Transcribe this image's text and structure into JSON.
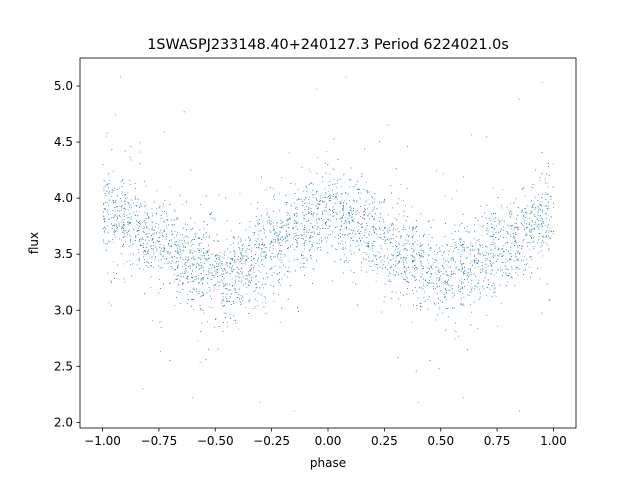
{
  "chart_data": {
    "type": "scatter",
    "title": "1SWASPJ233148.40+240127.3 Period 6224021.0s",
    "xlabel": "phase",
    "ylabel": "flux",
    "xlim": [
      -1.1,
      1.1
    ],
    "ylim": [
      1.95,
      5.25
    ],
    "xticks": [
      -1.0,
      -0.75,
      -0.5,
      -0.25,
      0.0,
      0.25,
      0.5,
      0.75,
      1.0
    ],
    "xtick_labels": [
      "−1.00",
      "−0.75",
      "−0.50",
      "−0.25",
      "0.00",
      "0.25",
      "0.50",
      "0.75",
      "1.00"
    ],
    "yticks": [
      2.0,
      2.5,
      3.0,
      3.5,
      4.0,
      4.5,
      5.0
    ],
    "ytick_labels": [
      "2.0",
      "2.5",
      "3.0",
      "3.5",
      "4.0",
      "4.5",
      "5.0"
    ],
    "grid": false,
    "point_color": "#1f77b4",
    "series": [
      {
        "curve": [
          {
            "x": -1.0,
            "y": 3.9
          },
          {
            "x": -0.9,
            "y": 3.78
          },
          {
            "x": -0.8,
            "y": 3.65
          },
          {
            "x": -0.7,
            "y": 3.55
          },
          {
            "x": -0.6,
            "y": 3.42
          },
          {
            "x": -0.5,
            "y": 3.32
          },
          {
            "x": -0.45,
            "y": 3.3
          },
          {
            "x": -0.4,
            "y": 3.36
          },
          {
            "x": -0.3,
            "y": 3.48
          },
          {
            "x": -0.2,
            "y": 3.62
          },
          {
            "x": -0.1,
            "y": 3.75
          },
          {
            "x": 0.0,
            "y": 3.9
          },
          {
            "x": 0.1,
            "y": 3.78
          },
          {
            "x": 0.2,
            "y": 3.65
          },
          {
            "x": 0.3,
            "y": 3.55
          },
          {
            "x": 0.4,
            "y": 3.42
          },
          {
            "x": 0.5,
            "y": 3.32
          },
          {
            "x": 0.55,
            "y": 3.3
          },
          {
            "x": 0.6,
            "y": 3.36
          },
          {
            "x": 0.7,
            "y": 3.48
          },
          {
            "x": 0.8,
            "y": 3.62
          },
          {
            "x": 0.9,
            "y": 3.75
          },
          {
            "x": 1.0,
            "y": 3.9
          }
        ],
        "scatter_sigma": 0.2,
        "n_points": 5000,
        "y_range": [
          2.1,
          5.1
        ],
        "outliers": [
          {
            "x": -0.92,
            "y": 5.08
          },
          {
            "x": 0.08,
            "y": 5.08
          },
          {
            "x": 0.95,
            "y": 5.03
          },
          {
            "x": -0.05,
            "y": 4.97
          },
          {
            "x": 0.85,
            "y": 4.88
          },
          {
            "x": -0.6,
            "y": 2.22
          },
          {
            "x": -0.3,
            "y": 2.18
          },
          {
            "x": 0.4,
            "y": 2.18
          },
          {
            "x": 0.6,
            "y": 2.22
          },
          {
            "x": 0.85,
            "y": 2.1
          },
          {
            "x": -0.15,
            "y": 2.1
          },
          {
            "x": -0.82,
            "y": 2.3
          }
        ]
      }
    ]
  }
}
